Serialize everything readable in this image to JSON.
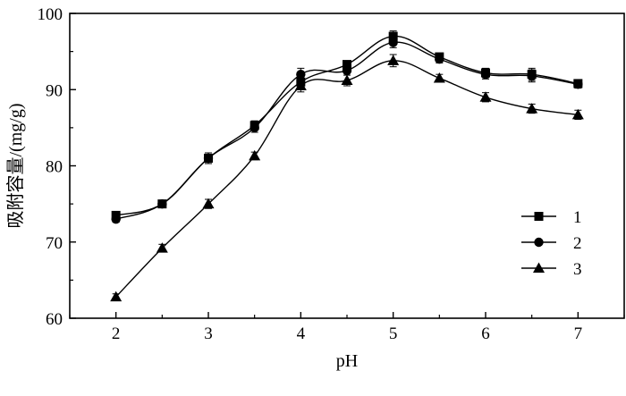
{
  "chart_data": {
    "type": "line",
    "title": "",
    "xlabel": "pH",
    "ylabel": "吸附容量/(mg/g)",
    "xlim": [
      1.5,
      7.5
    ],
    "ylim": [
      60,
      100
    ],
    "x_ticks": [
      2,
      3,
      4,
      5,
      6,
      7
    ],
    "y_ticks": [
      60,
      70,
      80,
      90,
      100
    ],
    "grid": false,
    "legend_position": "right",
    "series": [
      {
        "name": "1",
        "marker": "square",
        "x": [
          2,
          2.5,
          3,
          3.5,
          4,
          4.5,
          5,
          5.5,
          6,
          6.5,
          7
        ],
        "y": [
          73.5,
          75.0,
          81.0,
          85.3,
          91.0,
          93.3,
          97.0,
          94.3,
          92.2,
          92.0,
          90.8
        ],
        "err": [
          0.4,
          0.4,
          0.7,
          0.6,
          0.8,
          0.5,
          0.7,
          0.5,
          0.6,
          0.8,
          0.5
        ]
      },
      {
        "name": "2",
        "marker": "circle",
        "x": [
          2,
          2.5,
          3,
          3.5,
          4,
          4.5,
          5,
          5.5,
          6,
          6.5,
          7
        ],
        "y": [
          73.0,
          75.0,
          81.0,
          85.0,
          92.0,
          92.5,
          96.2,
          94.0,
          92.0,
          91.8,
          90.7
        ],
        "err": [
          0.4,
          0.4,
          0.7,
          0.6,
          0.8,
          0.6,
          0.7,
          0.5,
          0.6,
          0.8,
          0.5
        ]
      },
      {
        "name": "3",
        "marker": "triangle",
        "x": [
          2,
          2.5,
          3,
          3.5,
          4,
          4.5,
          5,
          5.5,
          6,
          6.5,
          7
        ],
        "y": [
          62.8,
          69.2,
          75.0,
          81.3,
          90.5,
          91.2,
          93.8,
          91.5,
          89.0,
          87.5,
          86.7
        ],
        "err": [
          0.4,
          0.5,
          0.6,
          0.5,
          0.8,
          0.7,
          0.8,
          0.5,
          0.6,
          0.6,
          0.6
        ]
      }
    ]
  }
}
